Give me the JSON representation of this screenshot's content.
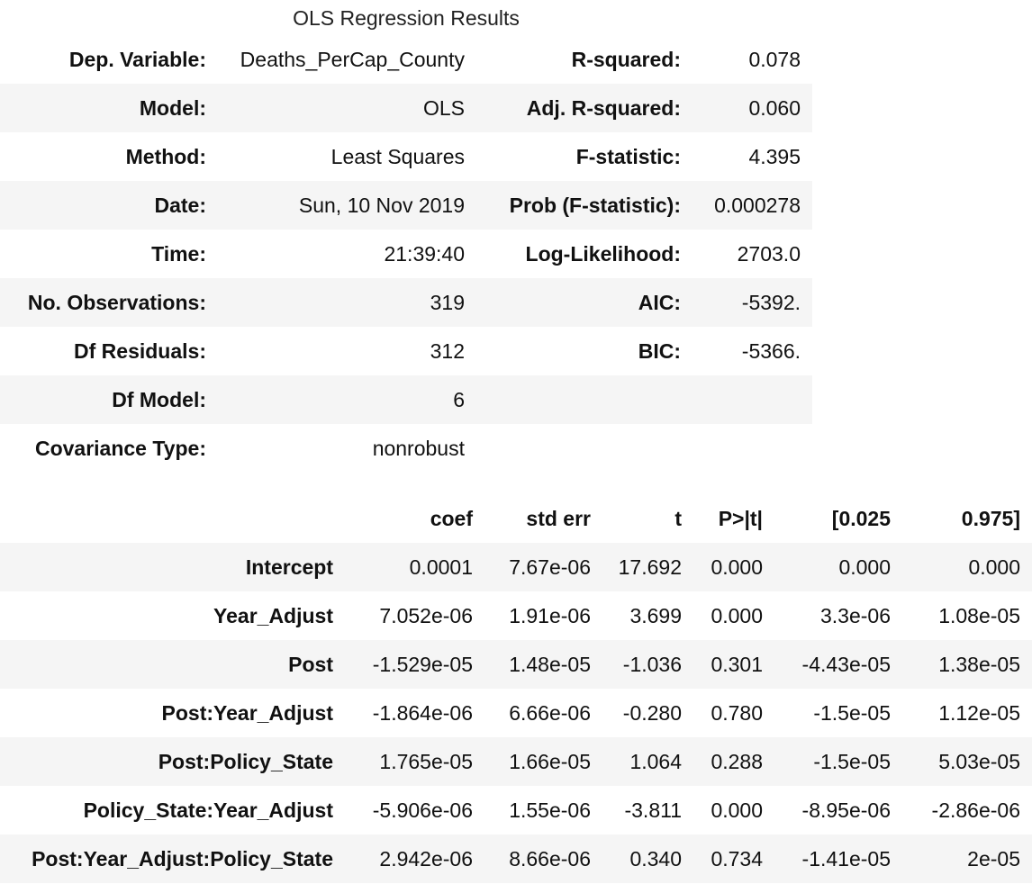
{
  "caption": "OLS Regression Results",
  "summary": {
    "rows": [
      {
        "label1": "Dep. Variable:",
        "value1": "Deaths_PerCap_County",
        "label2": "R-squared:",
        "value2": "0.078"
      },
      {
        "label1": "Model:",
        "value1": "OLS",
        "label2": "Adj. R-squared:",
        "value2": "0.060"
      },
      {
        "label1": "Method:",
        "value1": "Least Squares",
        "label2": "F-statistic:",
        "value2": "4.395"
      },
      {
        "label1": "Date:",
        "value1": "Sun, 10 Nov 2019",
        "label2": "Prob (F-statistic):",
        "value2": "0.000278"
      },
      {
        "label1": "Time:",
        "value1": "21:39:40",
        "label2": "Log-Likelihood:",
        "value2": "2703.0"
      },
      {
        "label1": "No. Observations:",
        "value1": "319",
        "label2": "AIC:",
        "value2": "-5392."
      },
      {
        "label1": "Df Residuals:",
        "value1": "312",
        "label2": "BIC:",
        "value2": "-5366."
      },
      {
        "label1": "Df Model:",
        "value1": "6",
        "label2": "",
        "value2": ""
      },
      {
        "label1": "Covariance Type:",
        "value1": "nonrobust",
        "label2": "",
        "value2": ""
      }
    ]
  },
  "coefficients": {
    "headers": [
      "",
      "coef",
      "std err",
      "t",
      "P>|t|",
      "[0.025",
      "0.975]"
    ],
    "rows": [
      {
        "name": "Intercept",
        "coef": "0.0001",
        "std_err": "7.67e-06",
        "t": "17.692",
        "p": "0.000",
        "ci_low": "0.000",
        "ci_high": "0.000"
      },
      {
        "name": "Year_Adjust",
        "coef": "7.052e-06",
        "std_err": "1.91e-06",
        "t": "3.699",
        "p": "0.000",
        "ci_low": "3.3e-06",
        "ci_high": "1.08e-05"
      },
      {
        "name": "Post",
        "coef": "-1.529e-05",
        "std_err": "1.48e-05",
        "t": "-1.036",
        "p": "0.301",
        "ci_low": "-4.43e-05",
        "ci_high": "1.38e-05"
      },
      {
        "name": "Post:Year_Adjust",
        "coef": "-1.864e-06",
        "std_err": "6.66e-06",
        "t": "-0.280",
        "p": "0.780",
        "ci_low": "-1.5e-05",
        "ci_high": "1.12e-05"
      },
      {
        "name": "Post:Policy_State",
        "coef": "1.765e-05",
        "std_err": "1.66e-05",
        "t": "1.064",
        "p": "0.288",
        "ci_low": "-1.5e-05",
        "ci_high": "5.03e-05"
      },
      {
        "name": "Policy_State:Year_Adjust",
        "coef": "-5.906e-06",
        "std_err": "1.55e-06",
        "t": "-3.811",
        "p": "0.000",
        "ci_low": "-8.95e-06",
        "ci_high": "-2.86e-06"
      },
      {
        "name": "Post:Year_Adjust:Policy_State",
        "coef": "2.942e-06",
        "std_err": "8.66e-06",
        "t": "0.340",
        "p": "0.734",
        "ci_low": "-1.41e-05",
        "ci_high": "2e-05"
      }
    ]
  }
}
